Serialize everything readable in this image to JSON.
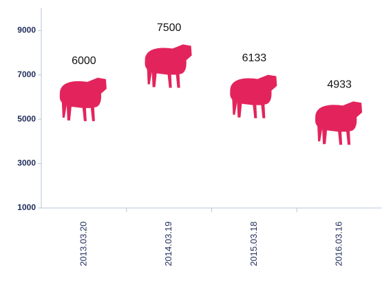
{
  "chart_data": {
    "type": "pictograph",
    "categories": [
      "2013.03.20",
      "2014.03.19",
      "2015.03.18",
      "2016.03.16"
    ],
    "values": [
      6000,
      7500,
      6133,
      4933
    ],
    "color": "#e3245c",
    "ylim": [
      1000,
      10000
    ],
    "yticks": [
      1000,
      3000,
      5000,
      7000,
      9000
    ],
    "grid": false
  }
}
